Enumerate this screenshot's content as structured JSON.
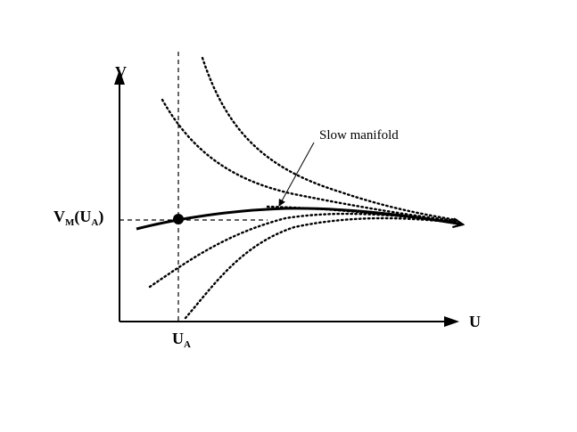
{
  "diagram": {
    "axes": {
      "y_label": "V",
      "x_label": "U"
    },
    "marks": {
      "x_mark_main": "U",
      "x_mark_sub": "A",
      "y_mark": {
        "p1": "V",
        "s1": "M",
        "p2": "(U",
        "s2": "A",
        "p3": ")"
      }
    },
    "annotation": "Slow manifold",
    "colors": {
      "ink": "#000000",
      "background": "#ffffff"
    }
  }
}
